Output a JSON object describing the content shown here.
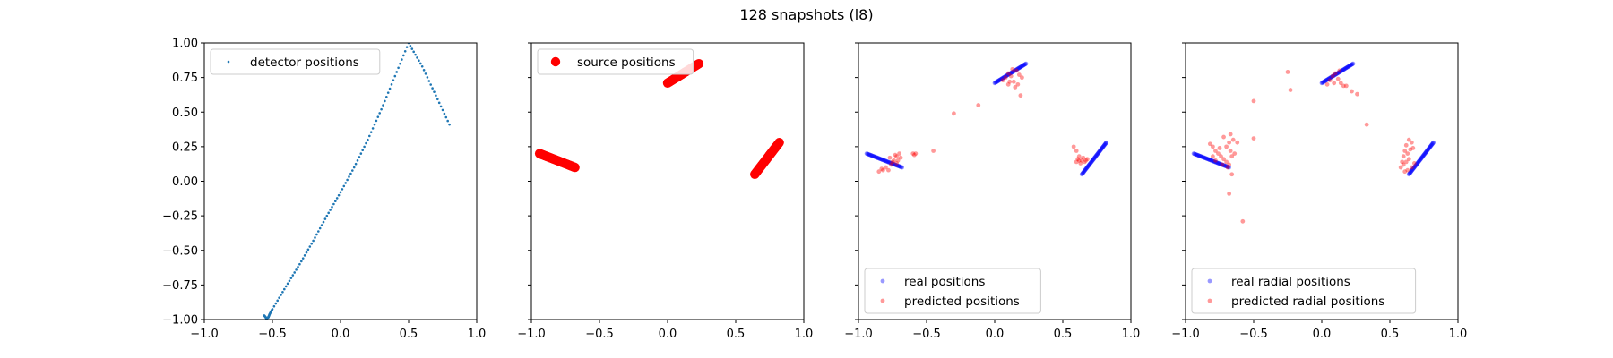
{
  "figure": {
    "title": "128 snapshots (l8)",
    "colors": {
      "detector": "#1f77b4",
      "real": "#0000ff",
      "predicted": "#ff0000"
    }
  },
  "chart_data": [
    {
      "type": "scatter",
      "xlim": [
        -1.0,
        1.0
      ],
      "ylim": [
        -1.0,
        1.0
      ],
      "xticks": [
        "−1.0",
        "−0.5",
        "0.0",
        "0.5",
        "1.0"
      ],
      "yticks": [
        "1.00",
        "0.75",
        "0.50",
        "0.25",
        "0.00",
        "−0.25",
        "−0.50",
        "−0.75",
        "−1.00"
      ],
      "legend_position": "upper left",
      "series": [
        {
          "name": "detector positions",
          "marker": "small-dot",
          "color": "#1f77b4",
          "points": [
            [
              -0.56,
              -0.97
            ],
            [
              -0.545,
              -0.99
            ],
            [
              -0.53,
              -0.985
            ],
            [
              -0.52,
              -0.96
            ],
            [
              -0.5,
              -0.925
            ],
            [
              -0.4,
              -0.76
            ],
            [
              -0.3,
              -0.6
            ],
            [
              -0.2,
              -0.43
            ],
            [
              -0.1,
              -0.25
            ],
            [
              0.0,
              -0.08
            ],
            [
              0.1,
              0.1
            ],
            [
              0.2,
              0.3
            ],
            [
              0.3,
              0.52
            ],
            [
              0.4,
              0.76
            ],
            [
              0.5,
              1.0
            ],
            [
              0.6,
              0.83
            ],
            [
              0.7,
              0.62
            ],
            [
              0.8,
              0.41
            ]
          ]
        }
      ]
    },
    {
      "type": "scatter",
      "xlim": [
        -1.0,
        1.0
      ],
      "ylim": [
        -1.0,
        1.0
      ],
      "xticks": [
        "−1.0",
        "−0.5",
        "0.0",
        "0.5",
        "1.0"
      ],
      "legend_position": "upper left",
      "series": [
        {
          "name": "source positions",
          "marker": "large-dot",
          "color": "#ff0000",
          "segments": [
            [
              [
                -0.94,
                0.2
              ],
              [
                -0.68,
                0.1
              ]
            ],
            [
              [
                0.0,
                0.71
              ],
              [
                0.23,
                0.85
              ]
            ],
            [
              [
                0.64,
                0.05
              ],
              [
                0.82,
                0.28
              ]
            ]
          ]
        }
      ]
    },
    {
      "type": "scatter",
      "xlim": [
        -1.0,
        1.0
      ],
      "ylim": [
        -1.0,
        1.0
      ],
      "xticks": [
        "−1.0",
        "−0.5",
        "0.0",
        "0.5",
        "1.0"
      ],
      "legend_position": "lower left",
      "series": [
        {
          "name": "real positions",
          "marker": "dot",
          "color": "#0000ff",
          "segments": [
            [
              [
                -0.94,
                0.2
              ],
              [
                -0.68,
                0.1
              ]
            ],
            [
              [
                0.0,
                0.71
              ],
              [
                0.23,
                0.85
              ]
            ],
            [
              [
                0.64,
                0.05
              ],
              [
                0.82,
                0.28
              ]
            ]
          ]
        },
        {
          "name": "predicted positions",
          "marker": "dot",
          "color": "#ff0000",
          "points": [
            [
              -0.85,
              0.07
            ],
            [
              -0.83,
              0.09
            ],
            [
              -0.82,
              0.08
            ],
            [
              -0.8,
              0.1
            ],
            [
              -0.78,
              0.08
            ],
            [
              -0.76,
              0.12
            ],
            [
              -0.74,
              0.15
            ],
            [
              -0.72,
              0.18
            ],
            [
              -0.7,
              0.2
            ],
            [
              -0.71,
              0.15
            ],
            [
              -0.73,
              0.19
            ],
            [
              -0.69,
              0.17
            ],
            [
              -0.75,
              0.14
            ],
            [
              -0.72,
              0.13
            ],
            [
              -0.77,
              0.17
            ],
            [
              -0.6,
              0.2
            ],
            [
              -0.58,
              0.2
            ],
            [
              -0.59,
              0.19
            ],
            [
              -0.45,
              0.22
            ],
            [
              -0.3,
              0.49
            ],
            [
              -0.12,
              0.55
            ],
            [
              0.06,
              0.73
            ],
            [
              0.08,
              0.75
            ],
            [
              0.1,
              0.78
            ],
            [
              0.12,
              0.76
            ],
            [
              0.14,
              0.72
            ],
            [
              0.16,
              0.8
            ],
            [
              0.18,
              0.77
            ],
            [
              0.17,
              0.7
            ],
            [
              0.13,
              0.81
            ],
            [
              0.11,
              0.72
            ],
            [
              0.15,
              0.68
            ],
            [
              0.2,
              0.75
            ],
            [
              0.19,
              0.62
            ],
            [
              0.1,
              0.7
            ],
            [
              0.58,
              0.25
            ],
            [
              0.6,
              0.22
            ],
            [
              0.62,
              0.18
            ],
            [
              0.64,
              0.15
            ],
            [
              0.66,
              0.14
            ],
            [
              0.63,
              0.13
            ],
            [
              0.61,
              0.16
            ],
            [
              0.65,
              0.17
            ],
            [
              0.67,
              0.15
            ],
            [
              0.62,
              0.15
            ],
            [
              0.68,
              0.16
            ],
            [
              0.6,
              0.14
            ]
          ]
        }
      ]
    },
    {
      "type": "scatter",
      "xlim": [
        -1.0,
        1.0
      ],
      "ylim": [
        -1.0,
        1.0
      ],
      "xticks": [
        "−1.0",
        "−0.5",
        "0.0",
        "0.5",
        "1.0"
      ],
      "legend_position": "lower left",
      "series": [
        {
          "name": "real radial positions",
          "marker": "dot",
          "color": "#0000ff",
          "segments": [
            [
              [
                -0.94,
                0.2
              ],
              [
                -0.68,
                0.1
              ]
            ],
            [
              [
                0.0,
                0.71
              ],
              [
                0.23,
                0.85
              ]
            ],
            [
              [
                0.64,
                0.05
              ],
              [
                0.82,
                0.28
              ]
            ]
          ]
        },
        {
          "name": "predicted radial positions",
          "marker": "dot",
          "color": "#ff0000",
          "points": [
            [
              -0.82,
              0.27
            ],
            [
              -0.8,
              0.25
            ],
            [
              -0.78,
              0.22
            ],
            [
              -0.76,
              0.2
            ],
            [
              -0.74,
              0.18
            ],
            [
              -0.72,
              0.16
            ],
            [
              -0.7,
              0.14
            ],
            [
              -0.68,
              0.12
            ],
            [
              -0.66,
              0.18
            ],
            [
              -0.7,
              0.25
            ],
            [
              -0.68,
              0.28
            ],
            [
              -0.65,
              0.3
            ],
            [
              -0.72,
              0.32
            ],
            [
              -0.75,
              0.24
            ],
            [
              -0.78,
              0.15
            ],
            [
              -0.8,
              0.18
            ],
            [
              -0.67,
              0.22
            ],
            [
              -0.64,
              0.2
            ],
            [
              -0.69,
              0.1
            ],
            [
              -0.73,
              0.12
            ],
            [
              -0.67,
              0.34
            ],
            [
              -0.62,
              0.28
            ],
            [
              -0.66,
              0.05
            ],
            [
              -0.68,
              -0.09
            ],
            [
              -0.58,
              -0.29
            ],
            [
              -0.5,
              0.58
            ],
            [
              -0.5,
              0.31
            ],
            [
              -0.25,
              0.79
            ],
            [
              -0.23,
              0.66
            ],
            [
              0.04,
              0.7
            ],
            [
              0.06,
              0.73
            ],
            [
              0.08,
              0.76
            ],
            [
              0.1,
              0.78
            ],
            [
              0.12,
              0.74
            ],
            [
              0.14,
              0.71
            ],
            [
              0.09,
              0.71
            ],
            [
              0.16,
              0.69
            ],
            [
              0.13,
              0.8
            ],
            [
              0.18,
              0.69
            ],
            [
              0.22,
              0.65
            ],
            [
              0.26,
              0.63
            ],
            [
              0.33,
              0.41
            ],
            [
              0.58,
              0.1
            ],
            [
              0.6,
              0.12
            ],
            [
              0.62,
              0.14
            ],
            [
              0.64,
              0.16
            ],
            [
              0.66,
              0.1
            ],
            [
              0.63,
              0.2
            ],
            [
              0.6,
              0.18
            ],
            [
              0.65,
              0.23
            ],
            [
              0.62,
              0.26
            ],
            [
              0.66,
              0.28
            ],
            [
              0.64,
              0.3
            ],
            [
              0.61,
              0.22
            ],
            [
              0.67,
              0.24
            ],
            [
              0.63,
              0.08
            ],
            [
              0.59,
              0.14
            ],
            [
              0.68,
              0.13
            ],
            [
              0.61,
              0.07
            ]
          ]
        }
      ]
    }
  ]
}
